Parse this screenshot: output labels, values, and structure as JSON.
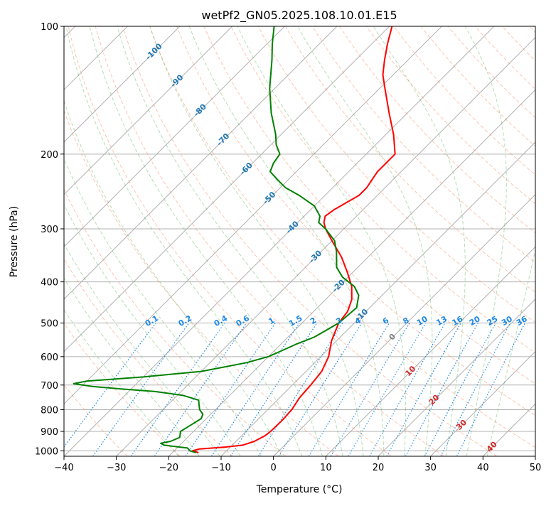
{
  "chart_data": {
    "type": "line",
    "subtype": "skew-t log-p diagram",
    "title": "wetPf2_GN05.2025.108.10.01.E15",
    "xlabel": "Temperature (°C)",
    "ylabel": "Pressure (hPa)",
    "xlim": [
      -40,
      50
    ],
    "ylim": [
      1030,
      100
    ],
    "y_scale": "log",
    "skew": true,
    "grid": true,
    "x_ticks": [
      -40,
      -30,
      -20,
      -10,
      0,
      10,
      20,
      30,
      40,
      50
    ],
    "y_ticks": [
      1000,
      900,
      800,
      700,
      600,
      500,
      400,
      300,
      200,
      100
    ],
    "x_tick_labels": [
      "−40",
      "−30",
      "−20",
      "−10",
      "0",
      "10",
      "20",
      "30",
      "40",
      "50"
    ],
    "y_tick_labels": [
      "1000",
      "900",
      "800",
      "700",
      "600",
      "500",
      "400",
      "300",
      "200",
      "100"
    ],
    "isotherm_labels": [
      {
        "value": -100,
        "label": "-100"
      },
      {
        "value": -90,
        "label": "-90"
      },
      {
        "value": -80,
        "label": "-80"
      },
      {
        "value": -70,
        "label": "-70"
      },
      {
        "value": -60,
        "label": "-60"
      },
      {
        "value": -50,
        "label": "-50"
      },
      {
        "value": -40,
        "label": "-40"
      },
      {
        "value": -30,
        "label": "-30"
      },
      {
        "value": -20,
        "label": "-20"
      },
      {
        "value": -10,
        "label": "-10"
      },
      {
        "value": 0,
        "label": "0"
      },
      {
        "value": 10,
        "label": "10"
      },
      {
        "value": 20,
        "label": "20"
      },
      {
        "value": 30,
        "label": "30"
      },
      {
        "value": 40,
        "label": "40"
      }
    ],
    "mixing_ratio_labels": [
      "0.1",
      "0.2",
      "0.4",
      "0.6",
      "1",
      "1.5",
      "2",
      "3",
      "4",
      "6",
      "8",
      "10",
      "13",
      "16",
      "20",
      "25",
      "30",
      "36"
    ],
    "mixing_ratio_values": [
      0.1,
      0.2,
      0.4,
      0.6,
      1,
      1.5,
      2,
      3,
      4,
      6,
      8,
      10,
      13,
      16,
      20,
      25,
      30,
      36
    ],
    "colors": {
      "temperature": "#ff0000",
      "dewpoint": "#008000",
      "isotherm_label_cold": "#1f77b4",
      "isotherm_label_zero": "#808080",
      "isotherm_label_warm": "#d62728",
      "mixing_ratio": "#1e88e5",
      "dry_adiabat": "#ff7f50",
      "moist_adiabat": "#2ca02c",
      "pressure_grid": "#b0b0b0"
    },
    "series": [
      {
        "name": "",
        "role": "temperature",
        "points": [
          [
            1010,
            -15
          ],
          [
            1000,
            -16.5
          ],
          [
            990,
            -15.5
          ],
          [
            980,
            -11
          ],
          [
            970,
            -8
          ],
          [
            950,
            -6.5
          ],
          [
            920,
            -5.5
          ],
          [
            900,
            -5.3
          ],
          [
            850,
            -5.2
          ],
          [
            800,
            -5.4
          ],
          [
            750,
            -6.2
          ],
          [
            700,
            -6.5
          ],
          [
            650,
            -7
          ],
          [
            600,
            -8.5
          ],
          [
            550,
            -11
          ],
          [
            500,
            -13
          ],
          [
            470,
            -13.5
          ],
          [
            440,
            -15
          ],
          [
            410,
            -17.5
          ],
          [
            380,
            -21
          ],
          [
            350,
            -25
          ],
          [
            320,
            -30
          ],
          [
            300,
            -33.5
          ],
          [
            290,
            -35
          ],
          [
            280,
            -36
          ],
          [
            270,
            -35.5
          ],
          [
            260,
            -34.5
          ],
          [
            250,
            -33.5
          ],
          [
            240,
            -33.5
          ],
          [
            230,
            -34
          ],
          [
            220,
            -34.5
          ],
          [
            210,
            -34.5
          ],
          [
            200,
            -34.5
          ],
          [
            180,
            -38.5
          ],
          [
            160,
            -43.5
          ],
          [
            140,
            -49
          ],
          [
            130,
            -52
          ],
          [
            120,
            -54.5
          ],
          [
            110,
            -57
          ],
          [
            100,
            -59.5
          ]
        ]
      },
      {
        "name": "",
        "role": "dewpoint",
        "points": [
          [
            1010,
            -15.5
          ],
          [
            1000,
            -17
          ],
          [
            985,
            -18
          ],
          [
            970,
            -23
          ],
          [
            960,
            -24
          ],
          [
            950,
            -22.5
          ],
          [
            930,
            -21.5
          ],
          [
            900,
            -22.5
          ],
          [
            880,
            -22
          ],
          [
            860,
            -21.5
          ],
          [
            840,
            -21
          ],
          [
            820,
            -21.5
          ],
          [
            800,
            -23
          ],
          [
            780,
            -24
          ],
          [
            760,
            -25
          ],
          [
            740,
            -29
          ],
          [
            725,
            -35
          ],
          [
            715,
            -42
          ],
          [
            705,
            -48
          ],
          [
            695,
            -52
          ],
          [
            685,
            -50
          ],
          [
            670,
            -40
          ],
          [
            650,
            -30
          ],
          [
            620,
            -23
          ],
          [
            600,
            -20
          ],
          [
            580,
            -18.5
          ],
          [
            560,
            -17
          ],
          [
            540,
            -15
          ],
          [
            520,
            -14
          ],
          [
            500,
            -13
          ],
          [
            460,
            -12.5
          ],
          [
            430,
            -14.5
          ],
          [
            410,
            -17
          ],
          [
            390,
            -21
          ],
          [
            370,
            -24
          ],
          [
            340,
            -27
          ],
          [
            320,
            -29.5
          ],
          [
            300,
            -33.5
          ],
          [
            290,
            -36
          ],
          [
            280,
            -37
          ],
          [
            265,
            -40
          ],
          [
            250,
            -45
          ],
          [
            240,
            -49
          ],
          [
            230,
            -52
          ],
          [
            220,
            -55
          ],
          [
            210,
            -56
          ],
          [
            200,
            -56.5
          ],
          [
            190,
            -59
          ],
          [
            180,
            -61
          ],
          [
            160,
            -66
          ],
          [
            140,
            -71
          ],
          [
            120,
            -76
          ],
          [
            110,
            -79
          ],
          [
            100,
            -82
          ]
        ]
      }
    ]
  }
}
